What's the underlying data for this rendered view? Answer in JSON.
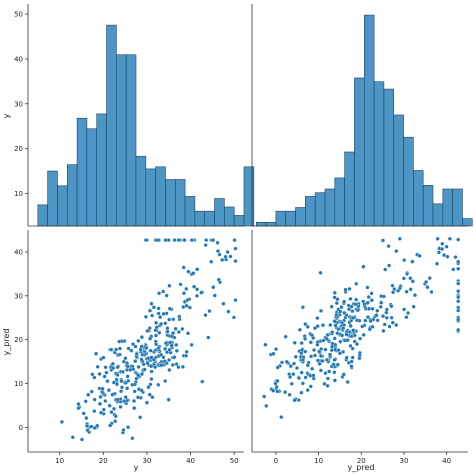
{
  "chart_data": {
    "type": "scatter",
    "colors": {
      "fill": "#4c96c6",
      "edge": "#24405c",
      "marker": "#1f77b4",
      "marker_edge": "#ffffff"
    },
    "axis_labels": {
      "y": "y",
      "y_pred": "y_pred"
    },
    "ticks": {
      "y": {
        "values": [
          10,
          20,
          30,
          40,
          50
        ],
        "labels": [
          "10",
          "20",
          "30",
          "40",
          "50"
        ]
      },
      "y_pred": {
        "values": [
          0,
          10,
          20,
          30,
          40
        ],
        "labels": [
          "0",
          "10",
          "20",
          "30",
          "40"
        ]
      }
    },
    "ranges": {
      "y": [
        2.75,
        52.25
      ],
      "y_pred": [
        -5.6,
        45.0
      ]
    },
    "panels": [
      {
        "type": "histogram",
        "variable": "y",
        "bin_start": 5.0,
        "bin_width": 2.25,
        "counts": [
          5,
          13,
          9.5,
          14.5,
          25.5,
          23,
          26.5,
          47.5,
          40.5,
          40.5,
          16.5,
          13.5,
          14,
          11,
          11,
          7,
          3.5,
          3.5,
          6.5,
          4.5,
          2.5,
          14
        ],
        "ylim": [
          0,
          52.5
        ]
      },
      {
        "type": "histogram",
        "variable": "y_pred",
        "bin_start": -4.6,
        "bin_width": 2.3,
        "counts": [
          1,
          1,
          4,
          4,
          5,
          8,
          9,
          10,
          13,
          20,
          40,
          57,
          39,
          37,
          30,
          24,
          15,
          11,
          6,
          10,
          10,
          2
        ],
        "ylim": [
          0,
          60
        ]
      },
      {
        "type": "scatter",
        "x_var": "y_pred",
        "y_var": "y",
        "seed": 7
      },
      {
        "type": "scatter",
        "x_var": "y",
        "y_var": "y_pred",
        "seed": 7
      }
    ]
  }
}
